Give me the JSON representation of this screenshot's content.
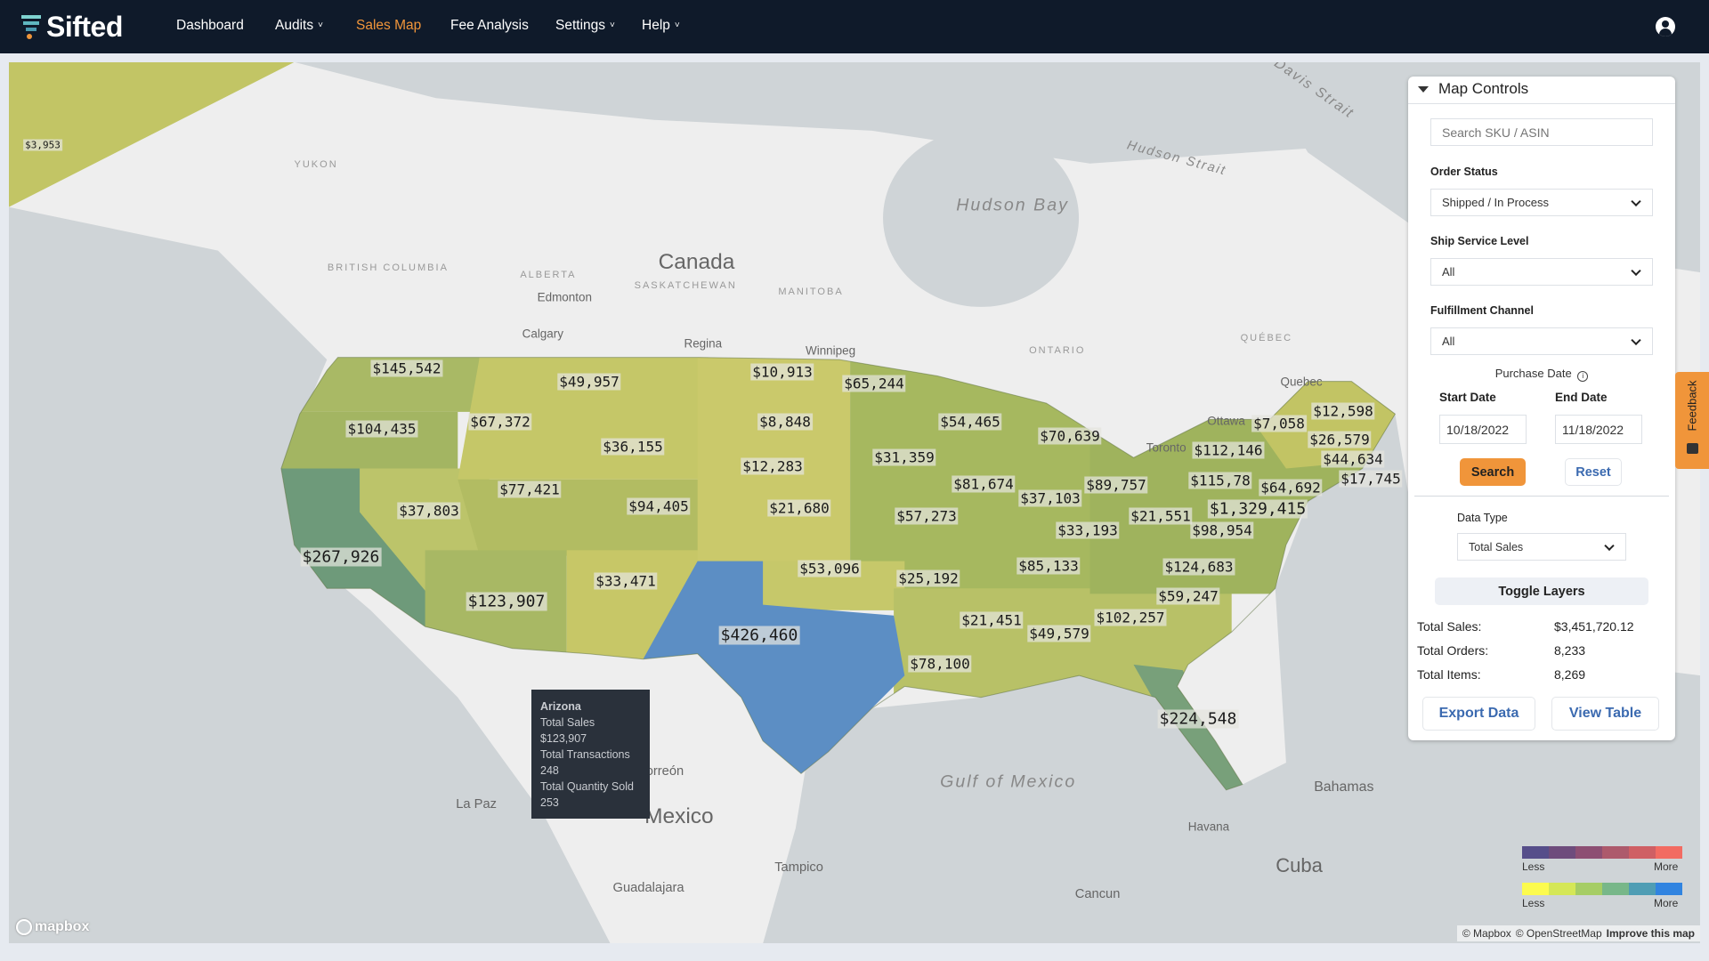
{
  "header": {
    "logo": "Sifted",
    "nav": [
      {
        "label": "Dashboard",
        "dropdown": false,
        "active": false
      },
      {
        "label": "Audits",
        "dropdown": true,
        "active": false
      },
      {
        "label": "Sales Map",
        "dropdown": false,
        "active": true
      },
      {
        "label": "Fee Analysis",
        "dropdown": false,
        "active": false
      },
      {
        "label": "Settings",
        "dropdown": true,
        "active": false
      },
      {
        "label": "Help",
        "dropdown": true,
        "active": false
      }
    ],
    "user_icon": "user-circle-icon",
    "accent": "#f0953a"
  },
  "map": {
    "state_labels": [
      "$3,953",
      "$145,542",
      "$49,957",
      "$10,913",
      "$65,244",
      "$104,435",
      "$67,372",
      "$8,848",
      "$36,155",
      "$54,465",
      "$70,639",
      "$31,359",
      "$12,283",
      "$77,421",
      "$81,674",
      "$37,103",
      "$89,757",
      "$112,146",
      "$12,598",
      "$7,058",
      "$26,579",
      "$44,634",
      "$17,745",
      "$115,78",
      "$64,692",
      "$1,329,415",
      "$37,803",
      "$94,405",
      "$21,680",
      "$57,273",
      "$21,551",
      "$98,954",
      "$33,193",
      "$267,926",
      "$85,133",
      "$124,683",
      "$53,096",
      "$33,471",
      "$25,192",
      "$123,907",
      "$59,247",
      "$102,257",
      "$21,451",
      "$49,579",
      "$426,460",
      "$78,100",
      "$224,548"
    ],
    "place_labels": [
      "Canada",
      "Mexico",
      "Hudson Bay",
      "Gulf of Mexico",
      "Cuba",
      "Bahamas",
      "Davis Strait",
      "Hudson Strait",
      "ONTARIO",
      "QUÉBEC",
      "ALBERTA",
      "SASKATCHEWAN",
      "MANITOBA",
      "BRITISH COLUMBIA",
      "YUKON",
      "Edmonton",
      "Calgary",
      "Regina",
      "Winnipeg",
      "Toronto",
      "Ottawa",
      "Quebec",
      "Havana",
      "Torreón",
      "La Paz",
      "Guadalajara",
      "Tampico",
      "Cancun"
    ],
    "tooltip": {
      "title": "Arizona",
      "lines": [
        "Total Sales",
        "$123,907",
        "Total Transactions",
        "248",
        "Total Quantity Sold",
        "253"
      ]
    },
    "legend": [
      {
        "less": "Less",
        "more": "More",
        "colors": [
          "#564e8a",
          "#6e4c7c",
          "#8d4f73",
          "#ad5a6c",
          "#cf5f64",
          "#f26b62"
        ]
      },
      {
        "less": "Less",
        "more": "More",
        "colors": [
          "#fcfb4e",
          "#d5e757",
          "#a6cd65",
          "#78b789",
          "#4f9db4",
          "#3184e0"
        ]
      }
    ],
    "attribution": {
      "mapbox": "© Mapbox",
      "osm": "© OpenStreetMap",
      "improve": "Improve this map"
    },
    "mapbox_logo": "mapbox"
  },
  "controls": {
    "title": "Map Controls",
    "search_placeholder": "Search SKU / ASIN",
    "order_status_label": "Order Status",
    "order_status_value": "Shipped / In Process",
    "ship_service_label": "Ship Service Level",
    "ship_service_value": "All",
    "fulfillment_label": "Fulfillment Channel",
    "fulfillment_value": "All",
    "purchase_date_label": "Purchase Date",
    "start_date_label": "Start Date",
    "start_date": "10/18/2022",
    "end_date_label": "End Date",
    "end_date": "11/18/2022",
    "search_button": "Search",
    "reset_button": "Reset",
    "data_type_label": "Data Type",
    "data_type_value": "Total Sales",
    "toggle_layers": "Toggle Layers",
    "totals": [
      {
        "label": "Total Sales:",
        "value": "$3,451,720.12"
      },
      {
        "label": "Total Orders:",
        "value": "8,233"
      },
      {
        "label": "Total Items:",
        "value": "8,269"
      }
    ],
    "export_button": "Export Data",
    "view_table_button": "View Table"
  },
  "feedback": "Feedback"
}
